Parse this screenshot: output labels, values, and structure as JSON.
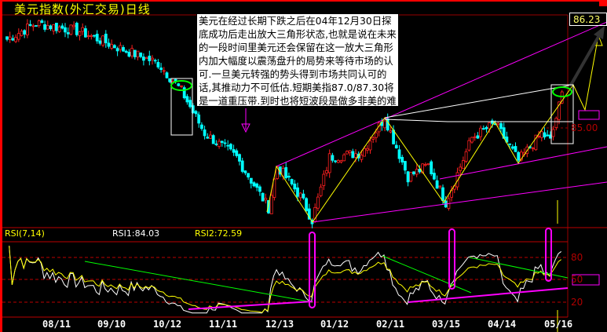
{
  "header": {
    "title": "美元指数(外汇交易)日线"
  },
  "annotation_note": "美元在经过长期下跌之后在04年12月30日探底成功后走出放大三角形状态,也就是说在未来的一段时间里美元还会保留在这一放大三角形内加大幅度以震荡盘升的局势来等待市场的认可.一旦美元转强的势头得到市场共同认可的话,其推动力不可低估.短期美指87.0/87.30将是一道重压带.到时也将短波段是做多非美的难得好时机.",
  "chart_data": [
    {
      "type": "candlestick",
      "title": "美元指数(外汇交易)日线",
      "price_labels": [
        "86.23",
        "85.00"
      ],
      "x_tick_labels": [
        "08/11",
        "09/10",
        "10/12",
        "11/11",
        "12/13",
        "01/12",
        "02/11",
        "03/15",
        "04/14",
        "05/16"
      ],
      "approx_close_path": [
        {
          "bar": 0,
          "price": 86.0
        },
        {
          "bar": 10,
          "price": 86.18
        },
        {
          "bar": 25,
          "price": 86.09
        },
        {
          "bar": 38,
          "price": 85.91
        },
        {
          "bar": 52,
          "price": 85.73
        },
        {
          "bar": 60,
          "price": 85.42
        },
        {
          "bar": 68,
          "price": 84.94
        },
        {
          "bar": 79,
          "price": 84.67
        },
        {
          "bar": 90,
          "price": 84.1
        },
        {
          "bar": 93,
          "price": 84.57
        },
        {
          "bar": 101,
          "price": 84.23
        },
        {
          "bar": 105,
          "price": 83.96
        },
        {
          "bar": 111,
          "price": 84.67
        },
        {
          "bar": 122,
          "price": 84.72
        },
        {
          "bar": 130,
          "price": 85.12
        },
        {
          "bar": 138,
          "price": 84.45
        },
        {
          "bar": 145,
          "price": 84.58
        },
        {
          "bar": 151,
          "price": 84.16
        },
        {
          "bar": 160,
          "price": 84.89
        },
        {
          "bar": 168,
          "price": 85.05
        },
        {
          "bar": 176,
          "price": 84.63
        },
        {
          "bar": 184,
          "price": 84.94
        },
        {
          "bar": 187,
          "price": 84.85
        },
        {
          "bar": 191,
          "price": 85.38
        }
      ],
      "colors": {
        "up": "#ff2020",
        "down": "#00ffff",
        "channel": "#ff00ff",
        "zigzag": "#ffff00",
        "trend": "#ffffff"
      }
    },
    {
      "type": "line",
      "title": "RSI(7,14)",
      "legend": [
        "RSI1:84.03",
        "RSI2:72.59"
      ],
      "y_tick_labels": [
        "80",
        "50",
        "20"
      ],
      "ylim": [
        0,
        100
      ],
      "colors": {
        "rsi1": "#ffffff",
        "rsi2": "#ffff00",
        "trend_down": "#00ff00",
        "trend_up": "#ff00ff"
      }
    }
  ]
}
